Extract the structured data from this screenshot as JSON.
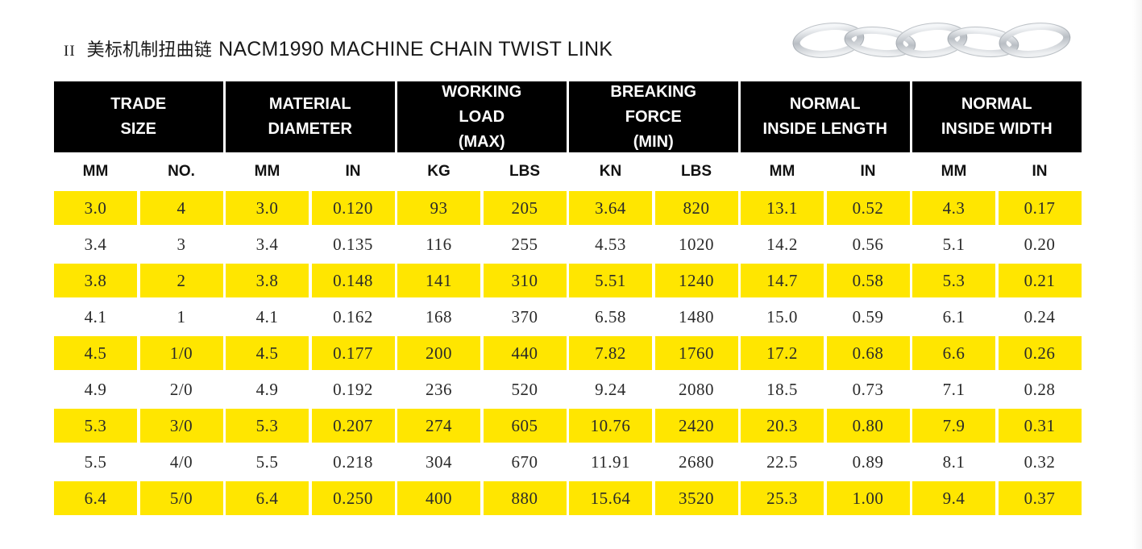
{
  "page": {
    "title_roman": "II",
    "title_cn": "美标机制扭曲链",
    "title_en": "NACM1990 MACHINE CHAIN TWIST LINK"
  },
  "colors": {
    "header_bg": "#000000",
    "header_text": "#ffffff",
    "highlight_row": "#ffe600"
  },
  "image": {
    "icon": "twisted-chain-links-photo"
  },
  "table": {
    "groups": [
      {
        "lines": [
          "TRADE",
          "SIZE"
        ],
        "sub": [
          "MM",
          "NO."
        ]
      },
      {
        "lines": [
          "MATERIAL",
          "DIAMETER"
        ],
        "sub": [
          "MM",
          "IN"
        ]
      },
      {
        "lines": [
          "WORKING",
          "LOAD",
          "(MAX)"
        ],
        "sub": [
          "KG",
          "LBS"
        ]
      },
      {
        "lines": [
          "BREAKING",
          "FORCE",
          "(MIN)"
        ],
        "sub": [
          "KN",
          "LBS"
        ]
      },
      {
        "lines": [
          "NORMAL",
          "INSIDE LENGTH"
        ],
        "sub": [
          "MM",
          "IN"
        ]
      },
      {
        "lines": [
          "NORMAL",
          "INSIDE WIDTH"
        ],
        "sub": [
          "MM",
          "IN"
        ]
      }
    ],
    "rows": [
      [
        "3.0",
        "4",
        "3.0",
        "0.120",
        "93",
        "205",
        "3.64",
        "820",
        "13.1",
        "0.52",
        "4.3",
        "0.17"
      ],
      [
        "3.4",
        "3",
        "3.4",
        "0.135",
        "116",
        "255",
        "4.53",
        "1020",
        "14.2",
        "0.56",
        "5.1",
        "0.20"
      ],
      [
        "3.8",
        "2",
        "3.8",
        "0.148",
        "141",
        "310",
        "5.51",
        "1240",
        "14.7",
        "0.58",
        "5.3",
        "0.21"
      ],
      [
        "4.1",
        "1",
        "4.1",
        "0.162",
        "168",
        "370",
        "6.58",
        "1480",
        "15.0",
        "0.59",
        "6.1",
        "0.24"
      ],
      [
        "4.5",
        "1/0",
        "4.5",
        "0.177",
        "200",
        "440",
        "7.82",
        "1760",
        "17.2",
        "0.68",
        "6.6",
        "0.26"
      ],
      [
        "4.9",
        "2/0",
        "4.9",
        "0.192",
        "236",
        "520",
        "9.24",
        "2080",
        "18.5",
        "0.73",
        "7.1",
        "0.28"
      ],
      [
        "5.3",
        "3/0",
        "5.3",
        "0.207",
        "274",
        "605",
        "10.76",
        "2420",
        "20.3",
        "0.80",
        "7.9",
        "0.31"
      ],
      [
        "5.5",
        "4/0",
        "5.5",
        "0.218",
        "304",
        "670",
        "11.91",
        "2680",
        "22.5",
        "0.89",
        "8.1",
        "0.32"
      ],
      [
        "6.4",
        "5/0",
        "6.4",
        "0.250",
        "400",
        "880",
        "15.64",
        "3520",
        "25.3",
        "1.00",
        "9.4",
        "0.37"
      ]
    ]
  }
}
